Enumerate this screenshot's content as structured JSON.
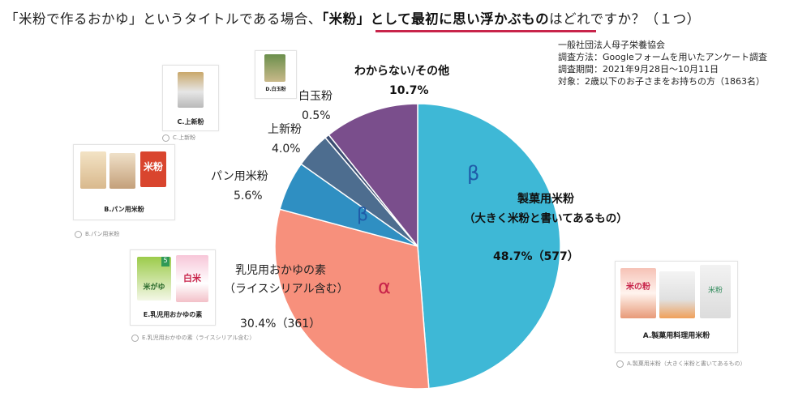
{
  "question": {
    "prefix": "「米粉で作るおかゆ」というタイトルである場合、",
    "highlight": "「米粉」として最初に思い浮かぶもの",
    "suffix": "はどれですか？（１つ）"
  },
  "source": {
    "org": "一般社団法人母子栄養協会",
    "method": "調査方法：Googleフォームを用いたアンケート調査",
    "period": "調査期間：2021年9月28日～10月11日",
    "target": "対象：2歳以下のお子さまをお持ちの方（1863名）"
  },
  "cards": {
    "a": {
      "caption": "A.製菓用料理用米粉",
      "option": "A.製菓用米粉（大きく米粉と書いてあるもの）",
      "pkg1": "米の粉",
      "pkg3": "米粉"
    },
    "b": {
      "caption": "B.パン用米粉",
      "option": "B.パン用米粉",
      "pkg3": "米粉"
    },
    "c": {
      "caption": "C.上新粉",
      "option": "C.上新粉"
    },
    "d": {
      "caption": "D.白玉粉"
    },
    "e": {
      "caption": "E.乳児用おかゆの素",
      "option": "E.乳児用おかゆの素（ライスシリアル含む）",
      "pkg1": "米がゆ",
      "pkg2": "白米",
      "badge": "5"
    }
  },
  "colors": {
    "beta": "#3eb8d6",
    "alpha": "#f7907c",
    "pan": "#2f8fc2",
    "joshin": "#4d6d8f",
    "shiratama": "#3d4f73",
    "other": "#7a4e8c",
    "accent": "#c8244a",
    "greek_beta": "#1f5ba8"
  },
  "chart_data": {
    "type": "pie",
    "slices": [
      {
        "label": "製菓用米粉",
        "sublabel": "（大きく米粉と書いてあるもの）",
        "value": 48.7,
        "value_text": "48.7%（577）",
        "marker": "β",
        "color": "#3eb8d6"
      },
      {
        "label": "乳児用おかゆの素",
        "sublabel": "（ライスシリアル含む）",
        "value": 30.4,
        "value_text": "30.4%（361）",
        "marker": "α",
        "color": "#f7907c"
      },
      {
        "label": "パン用米粉",
        "value": 5.6,
        "value_text": "5.6%",
        "marker": "β",
        "color": "#2f8fc2"
      },
      {
        "label": "上新粉",
        "value": 4.0,
        "value_text": "4.0%",
        "color": "#4d6d8f"
      },
      {
        "label": "白玉粉",
        "value": 0.5,
        "value_text": "0.5%",
        "color": "#3d4f73"
      },
      {
        "label": "わからない/その他",
        "value": 10.7,
        "value_text": "10.7%",
        "color": "#7a4e8c"
      }
    ]
  }
}
